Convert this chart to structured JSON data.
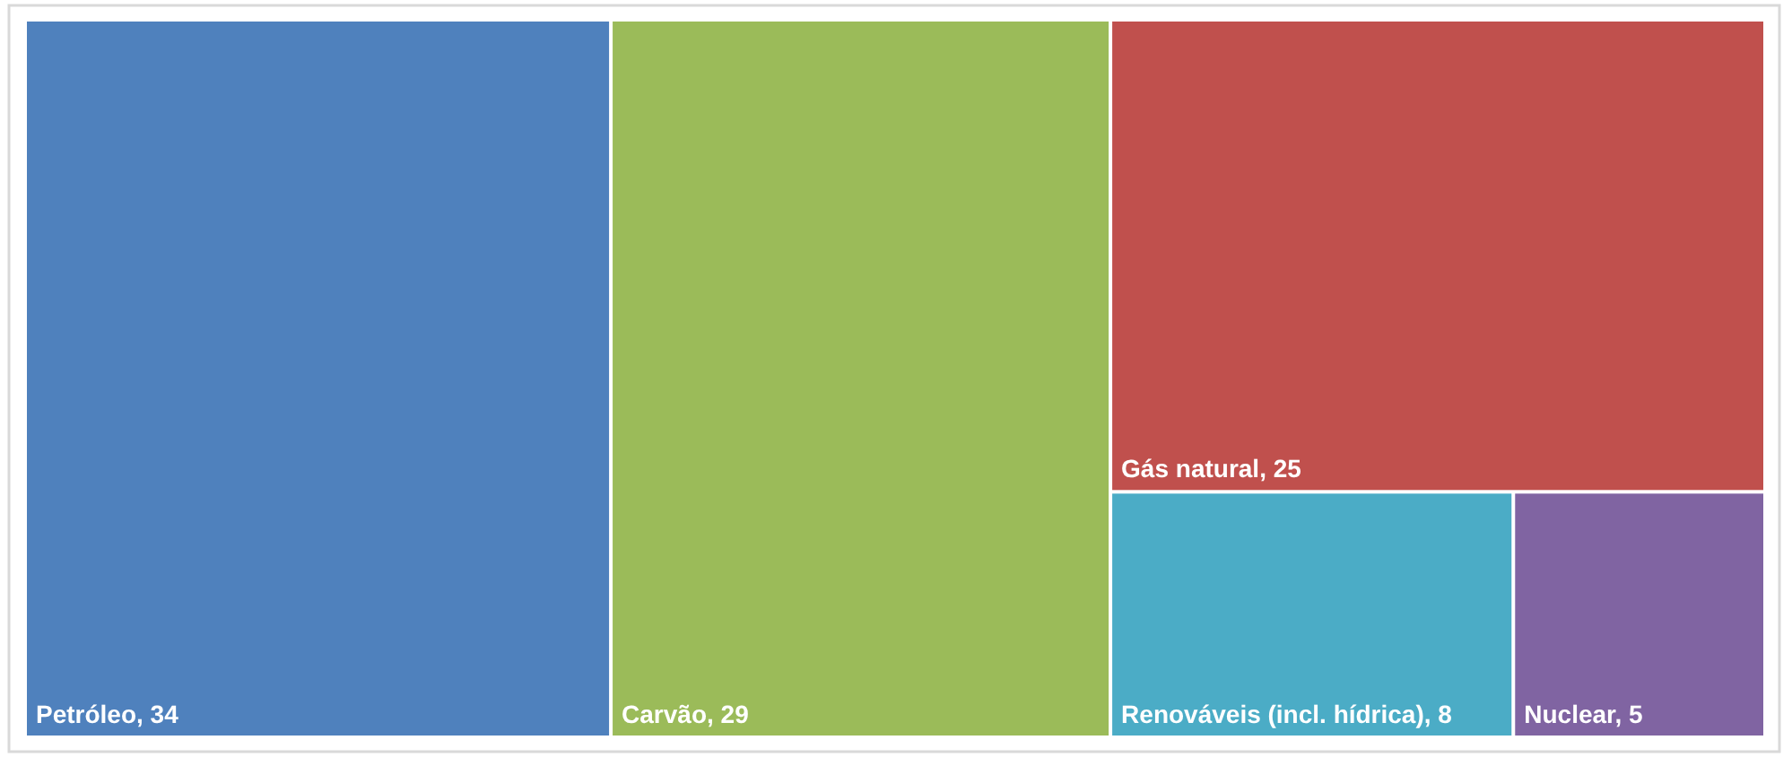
{
  "chart_data": {
    "type": "other",
    "categories": [
      "Petróleo",
      "Carvão",
      "Gás natural",
      "Renováveis (incl. hídrica)",
      "Nuclear"
    ],
    "values": [
      34,
      29,
      25,
      8,
      5
    ],
    "value_labels": [
      ", 34",
      ", 29",
      ", 25",
      ", 8",
      ", 5"
    ],
    "colors": [
      "#4f81bd",
      "#9bbb59",
      "#c0504d",
      "#4bacc6",
      "#8064a2"
    ]
  }
}
